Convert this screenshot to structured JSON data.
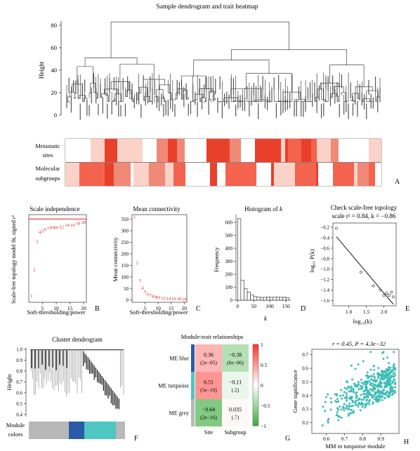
{
  "colors": {
    "red_max": "#e8402a",
    "red_mid": "#f08a77",
    "red_light": "#fbd2c8",
    "module_blue": "#2a5ba8",
    "module_turquoise": "#4ec6c1",
    "module_grey": "#b8b8b8",
    "heat_pos": "#e8433a",
    "heat_light": "#f7b5b0",
    "heat_neg": "#3da93d",
    "heat_neg_light": "#e7f2e7",
    "scatter_point": "#3fbcb6"
  },
  "panel_A": {
    "title": "Sample dendrogram and trait heatmap",
    "ylabel": "Height",
    "yticks": [
      "0",
      "20",
      "40",
      "60",
      "80"
    ],
    "row_labels": [
      [
        "Metastatic",
        "sites"
      ],
      [
        "Molecular",
        "subgroups"
      ]
    ],
    "letter": "A"
  },
  "chart_data": [
    {
      "id": "B",
      "type": "scatter",
      "title": "Scale independence",
      "xlabel": "Soft-thresholding/power",
      "ylabel": "Scale-free topology model fit, signed r²",
      "xticks": [
        "5",
        "10",
        "15",
        "20"
      ],
      "points": [
        {
          "x": 1,
          "y": 0.03,
          "label": "1"
        },
        {
          "x": 2,
          "y": 0.33,
          "label": "2"
        },
        {
          "x": 3,
          "y": 0.65,
          "label": "3"
        },
        {
          "x": 4,
          "y": 0.76,
          "label": "4"
        },
        {
          "x": 5,
          "y": 0.77,
          "label": "5"
        },
        {
          "x": 6,
          "y": 0.79,
          "label": "6"
        },
        {
          "x": 7,
          "y": 0.8,
          "label": "7"
        },
        {
          "x": 8,
          "y": 0.81,
          "label": "8"
        },
        {
          "x": 9,
          "y": 0.81,
          "label": "9"
        },
        {
          "x": 10,
          "y": 0.81,
          "label": "10"
        },
        {
          "x": 12,
          "y": 0.82,
          "label": "12"
        },
        {
          "x": 14,
          "y": 0.84,
          "label": "14"
        },
        {
          "x": 16,
          "y": 0.84,
          "label": "16"
        },
        {
          "x": 18,
          "y": 0.86,
          "label": "18"
        },
        {
          "x": 20,
          "y": 0.87,
          "label": "20"
        }
      ],
      "hline": 0.9,
      "xlim": [
        0,
        21
      ],
      "ylim": [
        -0.05,
        0.95
      ]
    },
    {
      "id": "C",
      "type": "scatter",
      "title": "Mean connectivity",
      "xlabel": "Soft-thresholding/power",
      "ylabel": "Mean connectivity",
      "yticks": [
        "0",
        "50",
        "100",
        "150",
        "200",
        "250",
        "300",
        "350"
      ],
      "xticks": [
        "5",
        "10",
        "15",
        "20"
      ],
      "points": [
        {
          "x": 1,
          "y": 362,
          "label": "1"
        },
        {
          "x": 2,
          "y": 165,
          "label": "2"
        },
        {
          "x": 3,
          "y": 88,
          "label": "3"
        },
        {
          "x": 4,
          "y": 55,
          "label": "4"
        },
        {
          "x": 5,
          "y": 38,
          "label": "5"
        },
        {
          "x": 6,
          "y": 28,
          "label": "6"
        },
        {
          "x": 7,
          "y": 23,
          "label": "7"
        },
        {
          "x": 8,
          "y": 19,
          "label": "8"
        },
        {
          "x": 9,
          "y": 16,
          "label": "9"
        },
        {
          "x": 10,
          "y": 14,
          "label": "10"
        },
        {
          "x": 12,
          "y": 12,
          "label": "12"
        },
        {
          "x": 14,
          "y": 10,
          "label": "14"
        },
        {
          "x": 16,
          "y": 9,
          "label": "16"
        },
        {
          "x": 18,
          "y": 8,
          "label": "18"
        },
        {
          "x": 20,
          "y": 7,
          "label": "20"
        }
      ],
      "xlim": [
        0,
        21
      ],
      "ylim": [
        -10,
        370
      ]
    },
    {
      "id": "D",
      "type": "bar",
      "title": "Histogram of",
      "title_italic": "k",
      "xlabel": "k",
      "ylabel": "Frequency",
      "yticks": [
        "0",
        "100",
        "200",
        "300",
        "400",
        "500",
        "600"
      ],
      "xticks": [
        "0",
        "50",
        "100",
        "150"
      ],
      "bin_width": 10,
      "bin_starts": [
        0,
        10,
        20,
        30,
        40,
        50,
        60,
        70,
        80,
        90,
        100,
        110,
        120,
        130,
        140,
        150
      ],
      "values": [
        630,
        155,
        88,
        62,
        40,
        28,
        24,
        22,
        22,
        25,
        22,
        24,
        25,
        22,
        24,
        20
      ],
      "xlim": [
        -5,
        165
      ],
      "ylim": [
        0,
        660
      ]
    },
    {
      "id": "E",
      "type": "scatter",
      "title": "Check scale-free topology",
      "subtitle": "scale r² = 0.84, k = −0.86",
      "xlabel": "log₁₀(k)",
      "ylabel": "log₁₀ P(k)",
      "yticks": [
        "−0.2",
        "−0.4",
        "−0.6",
        "−0.8",
        "−1.0",
        "−1.2",
        "−1.4",
        "−1.6"
      ],
      "xticks": [
        "1.0",
        "1.5",
        "2.0"
      ],
      "points": [
        {
          "x": 0.65,
          "y": -0.22
        },
        {
          "x": 1.35,
          "y": -1.06
        },
        {
          "x": 1.7,
          "y": -1.32
        },
        {
          "x": 1.9,
          "y": -1.4
        },
        {
          "x": 2.0,
          "y": -1.5
        },
        {
          "x": 2.08,
          "y": -1.46
        },
        {
          "x": 2.15,
          "y": -1.5
        },
        {
          "x": 2.22,
          "y": -1.44
        },
        {
          "x": 2.27,
          "y": -1.53
        }
      ],
      "fit_line": {
        "x1": 0.65,
        "y1": -0.38,
        "x2": 2.27,
        "y2": -1.67
      },
      "xlim": [
        0.55,
        2.35
      ],
      "ylim": [
        -1.7,
        -0.12
      ]
    },
    {
      "id": "G",
      "type": "heatmap",
      "title": "Module-trait relationships",
      "rows": [
        "ME blue",
        "ME turquoise",
        "ME grey"
      ],
      "cols": [
        "Site",
        "Subgroup"
      ],
      "values": [
        [
          0.36,
          -0.38
        ],
        [
          0.51,
          -0.11
        ],
        [
          -0.64,
          0.035
        ]
      ],
      "cell_text": [
        [
          [
            "0.36",
            "(2e−05)"
          ],
          [
            "−0.38",
            "(6e−06)"
          ]
        ],
        [
          [
            "0.51",
            "(5e−10)"
          ],
          [
            "−0.11",
            "(.2)"
          ]
        ],
        [
          [
            "−0.64",
            "(2e−16)"
          ],
          [
            "0.035",
            "(.7)"
          ]
        ]
      ],
      "colorbar_ticks": [
        "1",
        "0.5",
        "0",
        "−0.5",
        "−1"
      ],
      "range": [
        -1,
        1
      ]
    },
    {
      "id": "H",
      "type": "scatter",
      "title": "r = 0.45, P = 4.3e−32",
      "xlabel": "MM in turquoise module",
      "ylabel": "Gene significance",
      "xticks": [
        "0.6",
        "0.7",
        "0.8",
        "0.9"
      ],
      "yticks": [
        "0.2",
        "0.3",
        "0.4",
        "0.5",
        "0.6",
        "0.7"
      ],
      "xlim": [
        0.52,
        1.0
      ],
      "ylim": [
        0.12,
        0.74
      ],
      "n_points": 470,
      "seed": 17
    }
  ],
  "panel_F": {
    "title": "Cluster dendrogram",
    "ylabel": "Height",
    "yticks": [
      "0.4",
      "0.5",
      "0.6",
      "0.7",
      "0.8",
      "0.9",
      "1.0"
    ],
    "module_label": [
      "Module",
      "colors"
    ],
    "letter": "F"
  },
  "letters": {
    "B": "B",
    "C": "C",
    "D": "D",
    "E": "E",
    "G": "G",
    "H": "H"
  }
}
